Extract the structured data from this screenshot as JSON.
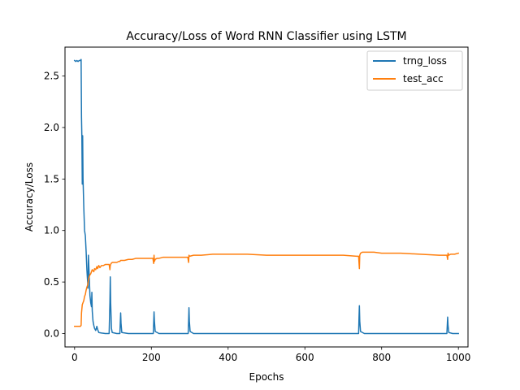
{
  "chart_data": {
    "type": "line",
    "title": "Accuracy/Loss of Word RNN Classifier using LSTM",
    "xlabel": "Epochs",
    "ylabel": "Accuracy/Loss",
    "xlim": [
      -25,
      1025
    ],
    "ylim": [
      -0.13,
      2.78
    ],
    "xticks": [
      0,
      200,
      400,
      600,
      800,
      1000
    ],
    "xtick_labels": [
      "0",
      "200",
      "400",
      "600",
      "800",
      "1000"
    ],
    "yticks": [
      0.0,
      0.5,
      1.0,
      1.5,
      2.0,
      2.5
    ],
    "ytick_labels": [
      "0.0",
      "0.5",
      "1.0",
      "1.5",
      "2.0",
      "2.5"
    ],
    "grid": false,
    "legend_position": "top-right",
    "series": [
      {
        "name": "trng_loss",
        "color": "#1f77b4",
        "points": [
          [
            0,
            2.65
          ],
          [
            3,
            2.64
          ],
          [
            6,
            2.65
          ],
          [
            9,
            2.64
          ],
          [
            12,
            2.65
          ],
          [
            15,
            2.65
          ],
          [
            17,
            2.66
          ],
          [
            18,
            2.1
          ],
          [
            19,
            1.9
          ],
          [
            20,
            1.45
          ],
          [
            21,
            1.92
          ],
          [
            22,
            1.5
          ],
          [
            24,
            1.22
          ],
          [
            26,
            1.0
          ],
          [
            28,
            0.95
          ],
          [
            30,
            0.8
          ],
          [
            32,
            0.62
          ],
          [
            34,
            0.5
          ],
          [
            35,
            0.44
          ],
          [
            36,
            0.76
          ],
          [
            38,
            0.57
          ],
          [
            40,
            0.37
          ],
          [
            42,
            0.3
          ],
          [
            44,
            0.26
          ],
          [
            45,
            0.4
          ],
          [
            46,
            0.22
          ],
          [
            48,
            0.12
          ],
          [
            50,
            0.08
          ],
          [
            52,
            0.05
          ],
          [
            55,
            0.03
          ],
          [
            58,
            0.07
          ],
          [
            60,
            0.04
          ],
          [
            63,
            0.01
          ],
          [
            70,
            0.005
          ],
          [
            80,
            0.0
          ],
          [
            90,
            0.0
          ],
          [
            92,
            0.3
          ],
          [
            93,
            0.55
          ],
          [
            94,
            0.3
          ],
          [
            96,
            0.05
          ],
          [
            98,
            0.01
          ],
          [
            110,
            0.0
          ],
          [
            118,
            0.0
          ],
          [
            119,
            0.1
          ],
          [
            120,
            0.2
          ],
          [
            121,
            0.1
          ],
          [
            123,
            0.01
          ],
          [
            140,
            0.0
          ],
          [
            205,
            0.0
          ],
          [
            206,
            0.1
          ],
          [
            207,
            0.21
          ],
          [
            208,
            0.12
          ],
          [
            210,
            0.02
          ],
          [
            220,
            0.0
          ],
          [
            296,
            0.0
          ],
          [
            297,
            0.12
          ],
          [
            298,
            0.25
          ],
          [
            299,
            0.12
          ],
          [
            301,
            0.02
          ],
          [
            310,
            0.0
          ],
          [
            740,
            0.0
          ],
          [
            741,
            0.15
          ],
          [
            742,
            0.27
          ],
          [
            743,
            0.12
          ],
          [
            745,
            0.02
          ],
          [
            755,
            0.0
          ],
          [
            970,
            0.0
          ],
          [
            971,
            0.08
          ],
          [
            972,
            0.16
          ],
          [
            973,
            0.08
          ],
          [
            975,
            0.01
          ],
          [
            985,
            0.0
          ],
          [
            1000,
            0.0
          ]
        ]
      },
      {
        "name": "test_acc",
        "color": "#ff7f0e",
        "points": [
          [
            0,
            0.07
          ],
          [
            5,
            0.07
          ],
          [
            10,
            0.07
          ],
          [
            15,
            0.07
          ],
          [
            17,
            0.08
          ],
          [
            18,
            0.2
          ],
          [
            20,
            0.28
          ],
          [
            22,
            0.3
          ],
          [
            24,
            0.32
          ],
          [
            26,
            0.36
          ],
          [
            28,
            0.38
          ],
          [
            30,
            0.42
          ],
          [
            32,
            0.45
          ],
          [
            34,
            0.47
          ],
          [
            36,
            0.52
          ],
          [
            38,
            0.55
          ],
          [
            40,
            0.57
          ],
          [
            42,
            0.58
          ],
          [
            44,
            0.6
          ],
          [
            46,
            0.62
          ],
          [
            48,
            0.61
          ],
          [
            50,
            0.6
          ],
          [
            52,
            0.63
          ],
          [
            55,
            0.62
          ],
          [
            58,
            0.65
          ],
          [
            60,
            0.63
          ],
          [
            63,
            0.66
          ],
          [
            66,
            0.64
          ],
          [
            70,
            0.66
          ],
          [
            75,
            0.66
          ],
          [
            80,
            0.67
          ],
          [
            85,
            0.67
          ],
          [
            90,
            0.67
          ],
          [
            92,
            0.62
          ],
          [
            93,
            0.66
          ],
          [
            95,
            0.68
          ],
          [
            98,
            0.69
          ],
          [
            105,
            0.69
          ],
          [
            110,
            0.69
          ],
          [
            115,
            0.7
          ],
          [
            118,
            0.7
          ],
          [
            120,
            0.71
          ],
          [
            130,
            0.71
          ],
          [
            140,
            0.72
          ],
          [
            150,
            0.72
          ],
          [
            160,
            0.73
          ],
          [
            170,
            0.73
          ],
          [
            180,
            0.73
          ],
          [
            190,
            0.73
          ],
          [
            200,
            0.73
          ],
          [
            204,
            0.73
          ],
          [
            206,
            0.68
          ],
          [
            207,
            0.76
          ],
          [
            208,
            0.7
          ],
          [
            210,
            0.72
          ],
          [
            215,
            0.73
          ],
          [
            220,
            0.73
          ],
          [
            230,
            0.74
          ],
          [
            240,
            0.74
          ],
          [
            260,
            0.74
          ],
          [
            280,
            0.74
          ],
          [
            295,
            0.74
          ],
          [
            297,
            0.69
          ],
          [
            298,
            0.76
          ],
          [
            300,
            0.75
          ],
          [
            310,
            0.76
          ],
          [
            330,
            0.76
          ],
          [
            360,
            0.77
          ],
          [
            400,
            0.77
          ],
          [
            450,
            0.77
          ],
          [
            500,
            0.76
          ],
          [
            550,
            0.76
          ],
          [
            600,
            0.76
          ],
          [
            650,
            0.76
          ],
          [
            700,
            0.76
          ],
          [
            735,
            0.75
          ],
          [
            740,
            0.75
          ],
          [
            742,
            0.63
          ],
          [
            743,
            0.76
          ],
          [
            745,
            0.78
          ],
          [
            750,
            0.79
          ],
          [
            760,
            0.79
          ],
          [
            780,
            0.79
          ],
          [
            800,
            0.78
          ],
          [
            850,
            0.78
          ],
          [
            900,
            0.77
          ],
          [
            950,
            0.76
          ],
          [
            968,
            0.76
          ],
          [
            970,
            0.76
          ],
          [
            972,
            0.72
          ],
          [
            973,
            0.78
          ],
          [
            975,
            0.76
          ],
          [
            980,
            0.77
          ],
          [
            990,
            0.77
          ],
          [
            1000,
            0.78
          ]
        ]
      }
    ]
  }
}
